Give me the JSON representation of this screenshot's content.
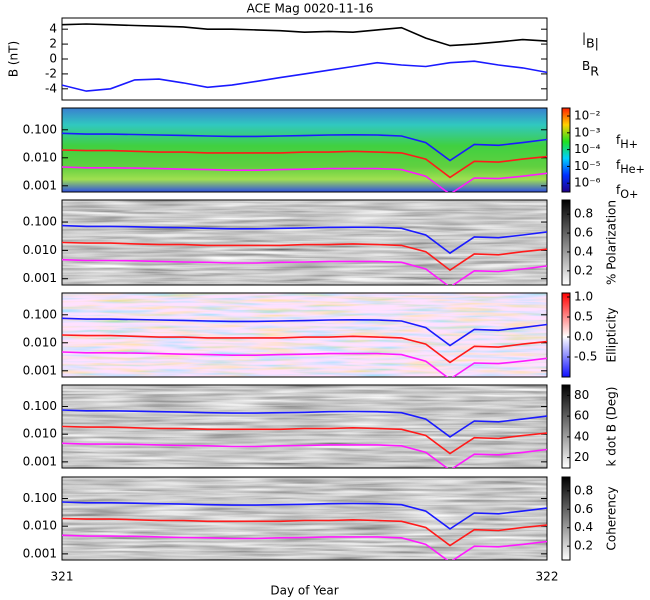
{
  "chart_data": [
    {
      "type": "line",
      "title": "ACE Mag 0020-11-16",
      "ylabel": "B (nT)",
      "x": [
        321,
        321.05,
        321.1,
        321.15,
        321.2,
        321.25,
        321.3,
        321.35,
        321.4,
        321.45,
        321.5,
        321.55,
        321.6,
        321.65,
        321.7,
        321.75,
        321.8,
        321.85,
        321.9,
        321.95,
        322
      ],
      "xlim": [
        321,
        322
      ],
      "ylim": [
        -5.5,
        5.5
      ],
      "yticks": [
        4,
        2,
        0,
        -2,
        -4
      ],
      "series": [
        {
          "name": "|B|",
          "color": "#000000",
          "values": [
            4.6,
            4.7,
            4.6,
            4.5,
            4.4,
            4.3,
            4.0,
            4.0,
            3.9,
            3.8,
            3.6,
            3.7,
            3.6,
            3.9,
            4.2,
            2.8,
            1.8,
            2.0,
            2.3,
            2.6,
            2.4
          ]
        },
        {
          "name": "BR",
          "color": "#1a1aff",
          "values": [
            -3.5,
            -4.3,
            -4.0,
            -2.8,
            -2.7,
            -3.2,
            -3.8,
            -3.5,
            -3.0,
            -2.5,
            -2.0,
            -1.5,
            -1.0,
            -0.5,
            -0.8,
            -1.0,
            -0.5,
            -0.3,
            -0.8,
            -1.2,
            -1.8
          ]
        }
      ]
    },
    {
      "type": "spectrogram",
      "palette": "rainbow",
      "x": [
        321,
        321.05,
        321.1,
        321.15,
        321.2,
        321.25,
        321.3,
        321.35,
        321.4,
        321.45,
        321.5,
        321.55,
        321.6,
        321.65,
        321.7,
        321.75,
        321.8,
        321.85,
        321.9,
        321.95,
        322
      ],
      "xlim": [
        321,
        322
      ],
      "ylim": [
        0.0006,
        0.6
      ],
      "log": true,
      "yticks": [
        {
          "value": 0.1,
          "label": "0.100"
        },
        {
          "value": 0.01,
          "label": "0.010"
        },
        {
          "value": 0.001,
          "label": "0.001"
        }
      ],
      "clim": [
        3e-07,
        0.03
      ],
      "clog": true,
      "cticks": [
        {
          "value": 0.01,
          "label": "10⁻²"
        },
        {
          "value": 0.001,
          "label": "10⁻³"
        },
        {
          "value": 0.0001,
          "label": "10⁻⁴"
        },
        {
          "value": 1e-05,
          "label": "10⁻⁵"
        },
        {
          "value": 1e-06,
          "label": "10⁻⁶"
        }
      ],
      "series": [
        {
          "name": "fH+",
          "color": "#1a1aff",
          "values": [
            0.075,
            0.07,
            0.07,
            0.068,
            0.065,
            0.063,
            0.06,
            0.058,
            0.058,
            0.06,
            0.062,
            0.065,
            0.066,
            0.065,
            0.06,
            0.035,
            0.008,
            0.03,
            0.028,
            0.035,
            0.045
          ]
        },
        {
          "name": "fHe+",
          "color": "#ff1a1a",
          "values": [
            0.019,
            0.018,
            0.018,
            0.017,
            0.016,
            0.016,
            0.015,
            0.015,
            0.015,
            0.015,
            0.016,
            0.016,
            0.017,
            0.016,
            0.015,
            0.009,
            0.002,
            0.0075,
            0.007,
            0.009,
            0.011
          ]
        },
        {
          "name": "fO+",
          "color": "#ff1aff",
          "values": [
            0.0047,
            0.0044,
            0.0044,
            0.0043,
            0.0041,
            0.0039,
            0.0038,
            0.0036,
            0.0036,
            0.0038,
            0.0039,
            0.0041,
            0.0041,
            0.0041,
            0.0038,
            0.0022,
            0.0005,
            0.0019,
            0.0018,
            0.0022,
            0.0028
          ]
        }
      ]
    },
    {
      "type": "spectrogram",
      "palette": "gray",
      "ylim": [
        0.0006,
        0.6
      ],
      "log": true,
      "yticks": [
        {
          "value": 0.1,
          "label": "0.100"
        },
        {
          "value": 0.01,
          "label": "0.010"
        },
        {
          "value": 0.001,
          "label": "0.001"
        }
      ],
      "clim": [
        0.05,
        0.95
      ],
      "cticks": [
        0.8,
        0.6,
        0.4,
        0.2
      ],
      "clabel": "% Polarization"
    },
    {
      "type": "spectrogram",
      "palette": "bwr",
      "ylim": [
        0.0006,
        0.6
      ],
      "log": true,
      "yticks": [
        {
          "value": 0.1,
          "label": "0.100"
        },
        {
          "value": 0.01,
          "label": "0.010"
        },
        {
          "value": 0.001,
          "label": "0.001"
        }
      ],
      "clim": [
        -1,
        1.1
      ],
      "cticks": [
        {
          "value": 1,
          "label": "1.0"
        },
        0.5,
        {
          "value": 0,
          "label": "0.0"
        },
        -0.5
      ],
      "clabel": "Ellipticity"
    },
    {
      "type": "spectrogram",
      "palette": "gray",
      "ylim": [
        0.0006,
        0.6
      ],
      "log": true,
      "yticks": [
        {
          "value": 0.1,
          "label": "0.100"
        },
        {
          "value": 0.01,
          "label": "0.010"
        },
        {
          "value": 0.001,
          "label": "0.001"
        }
      ],
      "clim": [
        10,
        90
      ],
      "cticks": [
        80,
        60,
        40,
        20
      ],
      "clabel": "k dot B (Deg)"
    },
    {
      "type": "spectrogram",
      "palette": "gray",
      "ylim": [
        0.0006,
        0.6
      ],
      "log": true,
      "yticks": [
        {
          "value": 0.1,
          "label": "0.100"
        },
        {
          "value": 0.01,
          "label": "0.010"
        },
        {
          "value": 0.001,
          "label": "0.001"
        }
      ],
      "clim": [
        0.05,
        0.95
      ],
      "cticks": [
        0.8,
        0.6,
        0.4,
        0.2
      ],
      "clabel": "Coherency",
      "xlim": [
        321,
        322
      ],
      "xticks": [
        321,
        322
      ],
      "xlabel": "Day of Year"
    }
  ]
}
